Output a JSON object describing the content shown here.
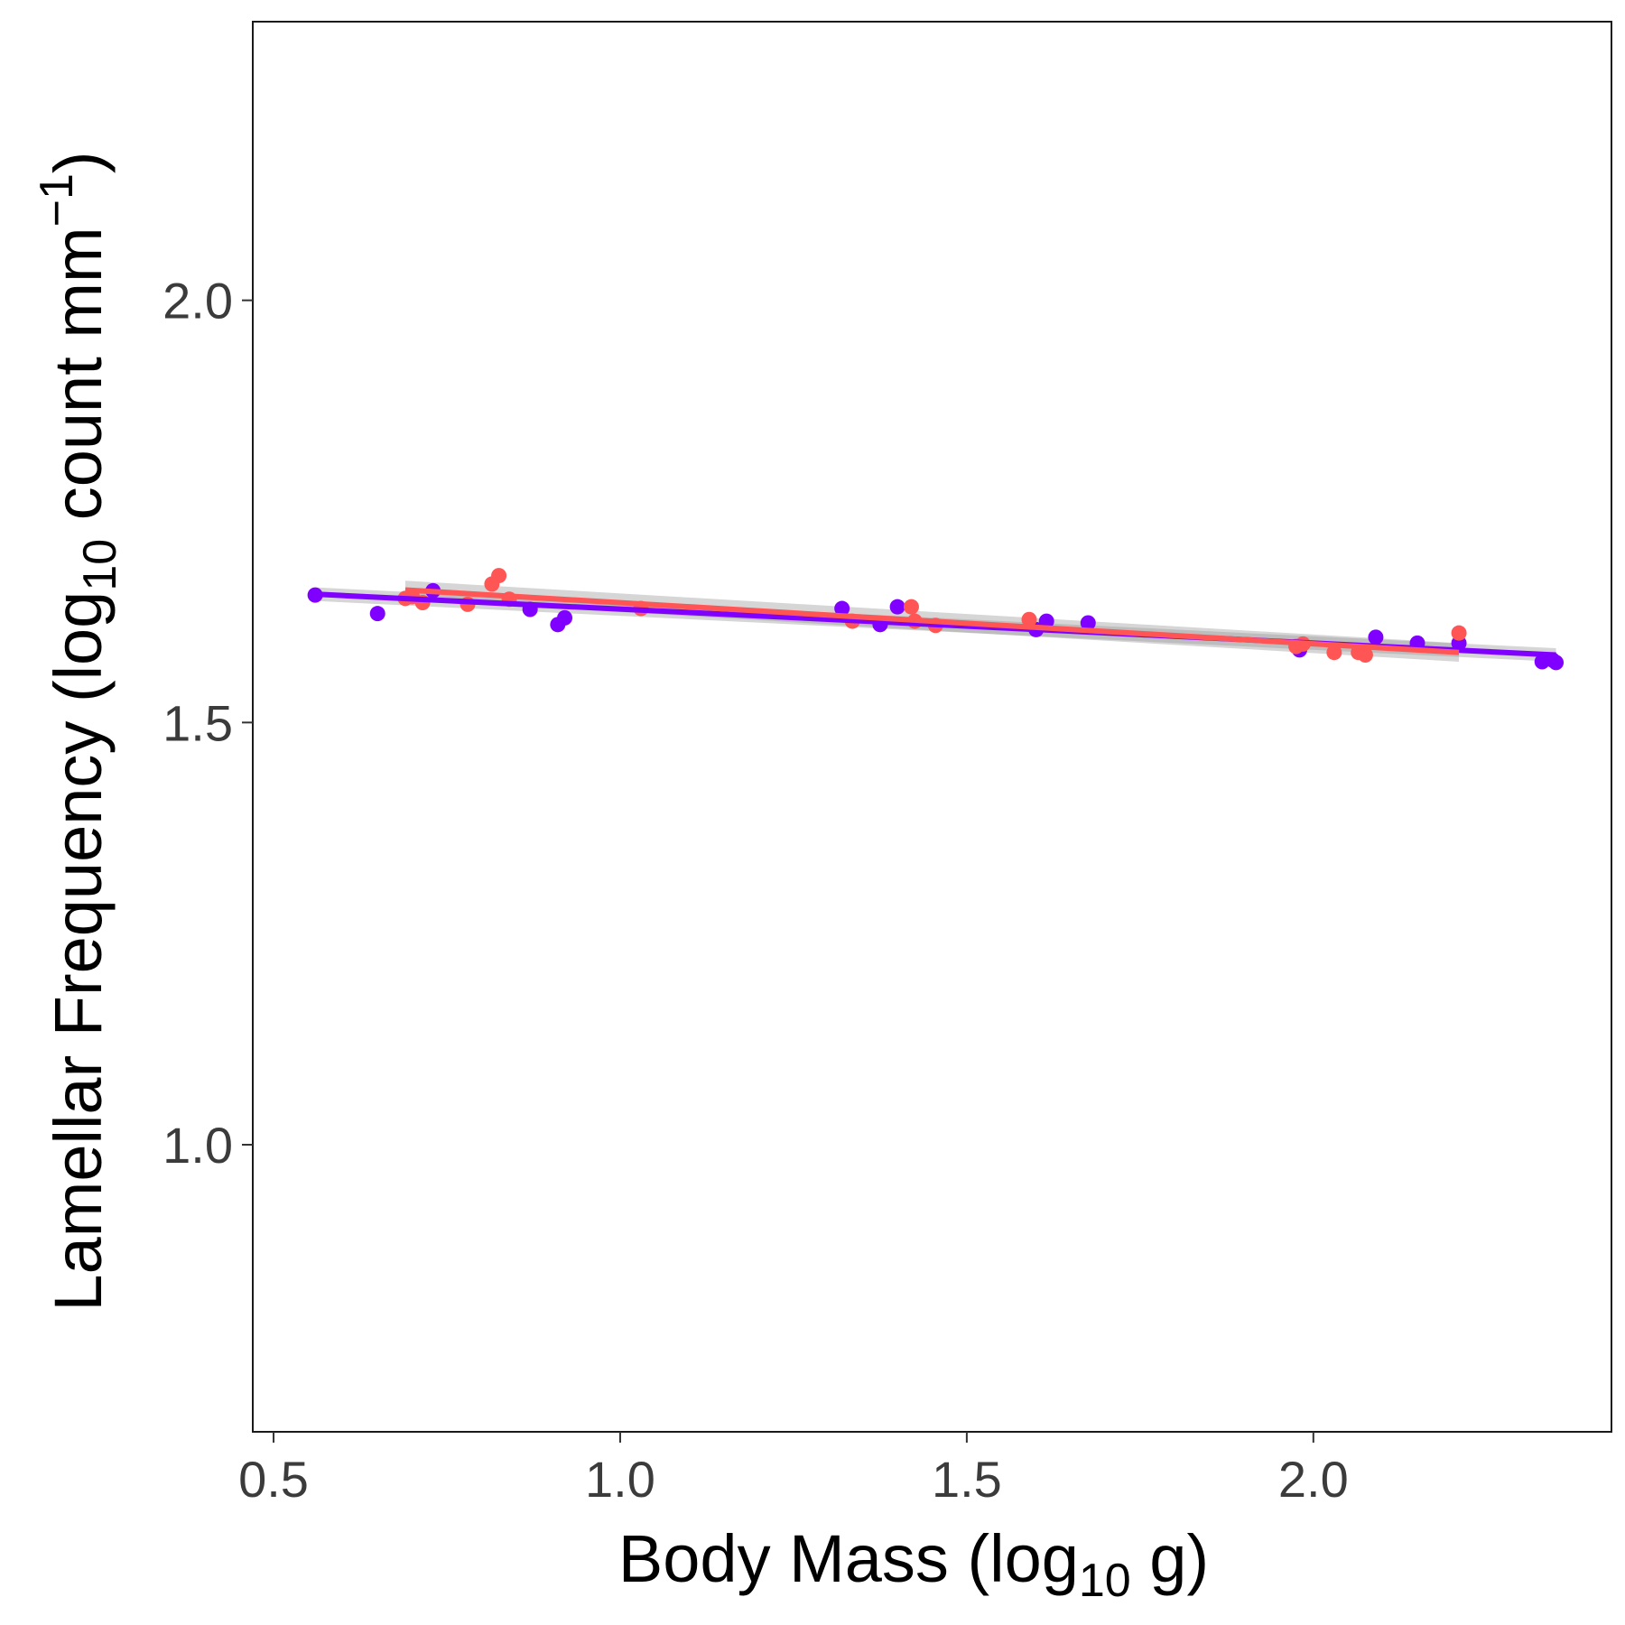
{
  "chart_data": {
    "type": "scatter",
    "xlabel": {
      "pre": "Body Mass (log",
      "sub": "10",
      "post": " g)"
    },
    "ylabel": {
      "pre": "Lamellar Frequency (log",
      "sub": "10",
      "mid": " count mm",
      "sup": "−1",
      "post": ")"
    },
    "xlim": [
      0.47,
      2.43
    ],
    "ylim": [
      0.66,
      2.33
    ],
    "xticks": [
      {
        "value": 0.5,
        "label": "0.5"
      },
      {
        "value": 1.0,
        "label": "1.0"
      },
      {
        "value": 1.5,
        "label": "1.5"
      },
      {
        "value": 2.0,
        "label": "2.0"
      }
    ],
    "yticks": [
      {
        "value": 1.0,
        "label": "1.0"
      },
      {
        "value": 1.5,
        "label": "1.5"
      },
      {
        "value": 2.0,
        "label": "2.0"
      }
    ],
    "grid": false,
    "legend": "none",
    "series": [
      {
        "color": "#8000ff",
        "points": [
          [
            0.56,
            1.651
          ],
          [
            0.65,
            1.629
          ],
          [
            0.73,
            1.656
          ],
          [
            0.87,
            1.634
          ],
          [
            0.91,
            1.616
          ],
          [
            0.92,
            1.624
          ],
          [
            1.32,
            1.635
          ],
          [
            1.375,
            1.616
          ],
          [
            1.4,
            1.637
          ],
          [
            1.6,
            1.61
          ],
          [
            1.615,
            1.62
          ],
          [
            1.675,
            1.618
          ],
          [
            1.98,
            1.586
          ],
          [
            2.09,
            1.601
          ],
          [
            2.15,
            1.594
          ],
          [
            2.21,
            1.594
          ],
          [
            2.33,
            1.572
          ],
          [
            2.345,
            1.574
          ],
          [
            2.35,
            1.571
          ]
        ],
        "fit": {
          "x": [
            0.56,
            2.35
          ],
          "y": [
            1.652,
            1.58
          ],
          "ci_halfwidth": 0.008
        }
      },
      {
        "color": "#ff5555",
        "points": [
          [
            0.69,
            1.647
          ],
          [
            0.7,
            1.649
          ],
          [
            0.715,
            1.642
          ],
          [
            0.78,
            1.64
          ],
          [
            0.815,
            1.664
          ],
          [
            0.825,
            1.674
          ],
          [
            0.84,
            1.646
          ],
          [
            1.03,
            1.635
          ],
          [
            1.335,
            1.62
          ],
          [
            1.42,
            1.637
          ],
          [
            1.425,
            1.62
          ],
          [
            1.455,
            1.615
          ],
          [
            1.59,
            1.622
          ],
          [
            1.975,
            1.59
          ],
          [
            1.985,
            1.593
          ],
          [
            2.03,
            1.583
          ],
          [
            2.065,
            1.583
          ],
          [
            2.075,
            1.58
          ],
          [
            2.21,
            1.606
          ]
        ],
        "fit": {
          "x": [
            0.69,
            2.21
          ],
          "y": [
            1.657,
            1.583
          ],
          "ci_halfwidth": 0.011
        }
      }
    ]
  }
}
